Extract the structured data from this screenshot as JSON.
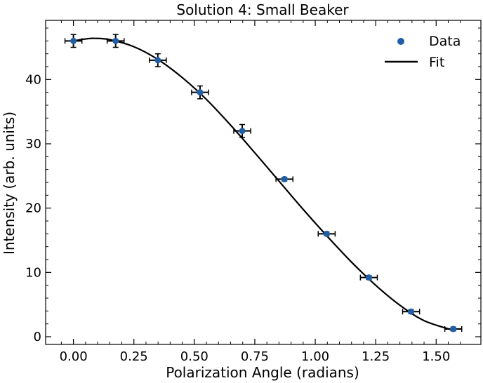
{
  "chart_data": {
    "type": "scatter",
    "title": "Solution 4: Small Beaker",
    "xlabel": "Polarization Angle (radians)",
    "ylabel": "Intensity (arb. units)",
    "xlim": [
      -0.115,
      1.685
    ],
    "ylim": [
      -1.2,
      49.2
    ],
    "xticks": [
      0.0,
      0.25,
      0.5,
      0.75,
      1.0,
      1.25,
      1.5
    ],
    "xtick_labels": [
      "0.00",
      "0.25",
      "0.50",
      "0.75",
      "1.00",
      "1.25",
      "1.50"
    ],
    "yticks": [
      0,
      10,
      20,
      30,
      40
    ],
    "ytick_labels": [
      "0",
      "10",
      "20",
      "30",
      "40"
    ],
    "grid": false,
    "legend": {
      "placement": "top-right",
      "entries": [
        "Data",
        "Fit"
      ]
    },
    "colors": {
      "data": "#1f5fa8",
      "fit": "#000000",
      "errorbar": "#000000"
    },
    "series": [
      {
        "name": "Data",
        "kind": "scatter-errorbar",
        "x": [
          0.0,
          0.1745,
          0.349,
          0.5236,
          0.6981,
          0.8727,
          1.0472,
          1.2217,
          1.3963,
          1.5708
        ],
        "y": [
          46.0,
          46.0,
          43.0,
          38.0,
          32.0,
          24.5,
          16.0,
          9.2,
          3.9,
          1.2
        ],
        "xerr": [
          0.035,
          0.035,
          0.035,
          0.035,
          0.035,
          0.035,
          0.035,
          0.035,
          0.035,
          0.035
        ],
        "yerr": [
          1.0,
          1.0,
          1.0,
          1.0,
          1.0,
          0.3,
          0.3,
          0.3,
          0.3,
          0.3
        ]
      },
      {
        "name": "Fit",
        "kind": "line",
        "x": [
          0.0,
          0.05,
          0.087,
          0.15,
          0.25,
          0.35,
          0.45,
          0.55,
          0.65,
          0.75,
          0.85,
          0.95,
          1.05,
          1.15,
          1.25,
          1.35,
          1.45,
          1.5708
        ],
        "y": [
          46.0,
          46.3,
          46.4,
          46.2,
          45.1,
          43.1,
          40.3,
          36.9,
          32.9,
          28.6,
          24.2,
          19.8,
          15.6,
          11.6,
          8.0,
          4.9,
          2.5,
          1.0
        ]
      }
    ]
  }
}
